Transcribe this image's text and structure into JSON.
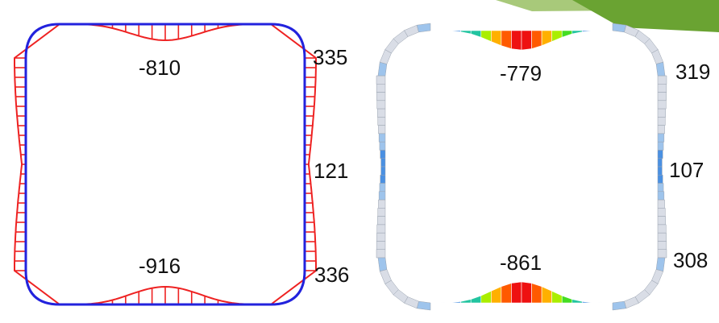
{
  "colors": {
    "frame_outline": "#2222dd",
    "moment_diagram": "#ee2222",
    "scale": [
      "#d9dde6",
      "#9ec4ec",
      "#4a90e2",
      "#22c4a0",
      "#44dd22",
      "#aaee00",
      "#ffb000",
      "#ff5a00",
      "#ee1111"
    ],
    "decor_green": "#6aa332",
    "decor_light": "#a8c97a"
  },
  "left_diagram": {
    "top_center": "-810",
    "top_corner": "335",
    "mid_side": "121",
    "bottom_center": "-916",
    "bottom_corner": "336"
  },
  "right_diagram": {
    "top_center": "-779",
    "top_corner": "319",
    "mid_side": "107",
    "bottom_center": "-861",
    "bottom_corner": "308"
  }
}
